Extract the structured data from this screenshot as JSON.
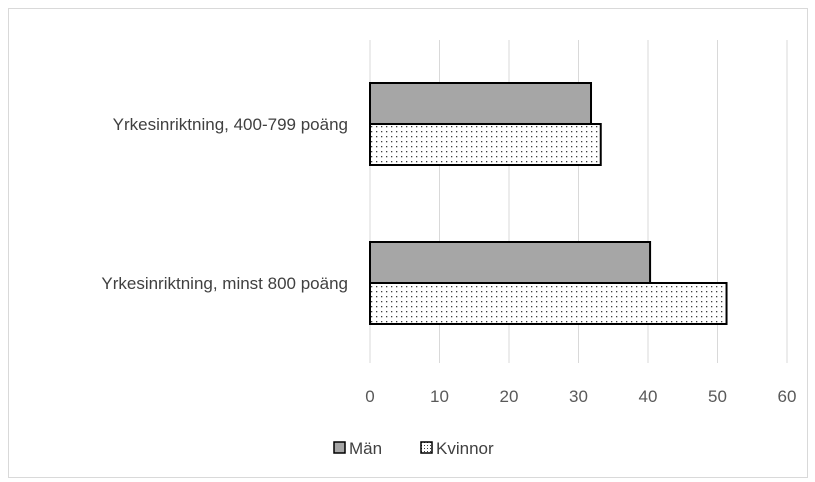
{
  "chart_data": {
    "type": "bar",
    "orientation": "horizontal",
    "categories": [
      "Yrkesinriktning, 400-799 poäng",
      "Yrkesinriktning, minst 800 poäng"
    ],
    "series": [
      {
        "name": "Män",
        "values": [
          31.8,
          40.3
        ],
        "color": "#a6a6a6",
        "pattern": "solid"
      },
      {
        "name": "Kvinnor",
        "values": [
          33.2,
          51.3
        ],
        "color": "#ffffff",
        "pattern": "dotted"
      }
    ],
    "xlim": [
      0,
      60
    ],
    "xticks": [
      "0",
      "10",
      "20",
      "30",
      "40",
      "50",
      "60"
    ],
    "grid": "vertical",
    "legend": "bottom",
    "title": "",
    "xlabel": "",
    "ylabel": ""
  }
}
